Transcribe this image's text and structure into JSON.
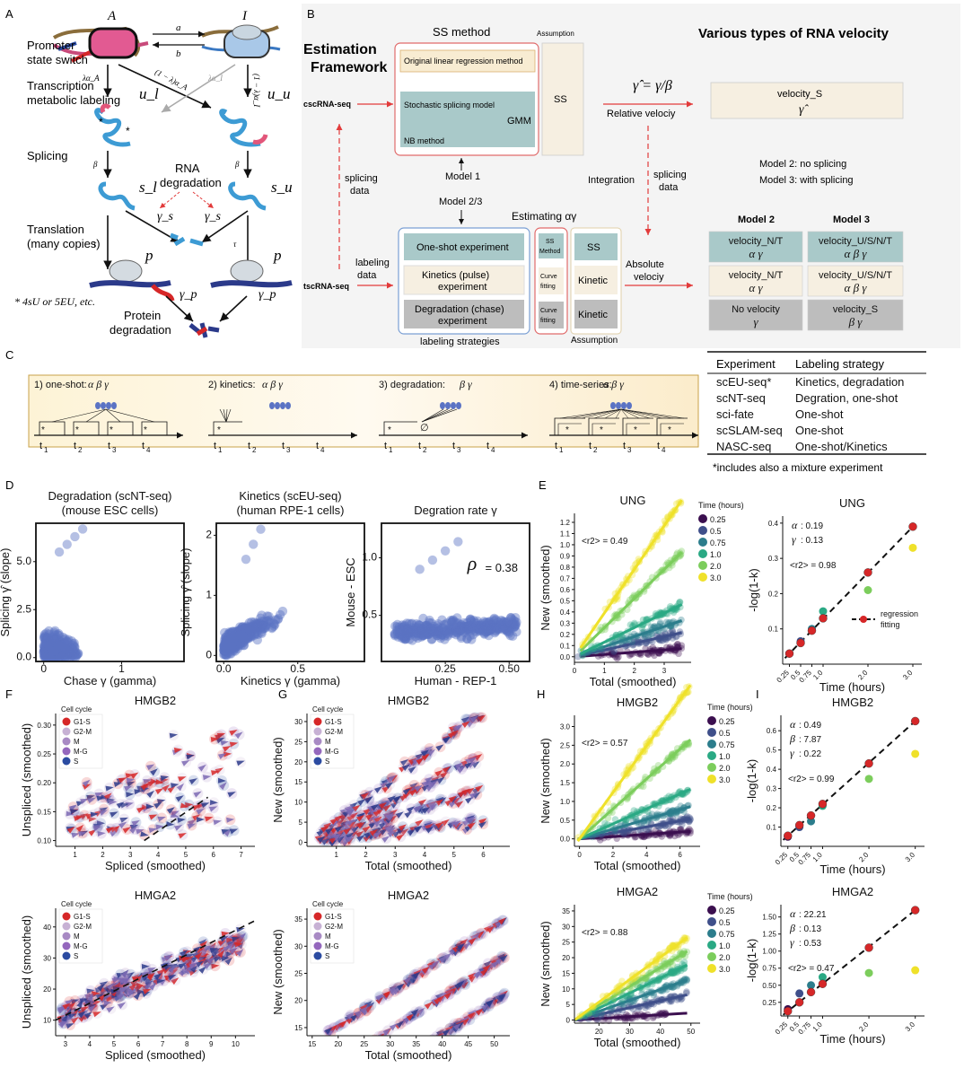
{
  "panel_letters": {
    "A": "A",
    "B": "B",
    "C": "C",
    "D": "D",
    "E": "E",
    "F": "F",
    "G": "G",
    "H": "H",
    "I": "I"
  },
  "panelA": {
    "state_A": "A",
    "state_I": "I",
    "rate_a": "a",
    "rate_b": "b",
    "row_promoter": [
      "Promoter",
      "state switch"
    ],
    "row_transcription": [
      "Transcription",
      "metabolic labeling"
    ],
    "row_splicing": "Splicing",
    "rna_degradation": [
      "RNA",
      "degradation"
    ],
    "row_translation": [
      "Translation",
      "(many copies)"
    ],
    "footnote": "* 4sU or 5EU, etc.",
    "protein_degradation": [
      "Protein",
      "degradation"
    ],
    "u_l": "u_l",
    "u_u": "u_u",
    "s_l": "s_l",
    "s_u": "s_u",
    "p": "p",
    "lambda_alphaA": "λα_A",
    "one_minus_lambda_alphaA": "(1 − λ)α_A",
    "lambda_alphaI": "λα_I",
    "one_minus_lambda_alphaI": "(1 − λ)α_I",
    "beta": "β",
    "tau": "τ",
    "gamma_s": "γ_s",
    "gamma_p": "γ_p"
  },
  "panelB": {
    "estimation_framework": [
      "Estimation",
      "Framework"
    ],
    "ss_method_title": "SS method",
    "assumption_top": "Assumption",
    "various_title": "Various types of RNA velocity",
    "original_lr": "Original linear regression method",
    "stochastic": "Stochastic splicing model",
    "gmm": "GMM",
    "nb": "NB method",
    "ss": "SS",
    "cscrna": "cscRNA-seq",
    "tscrna": "tscRNA-seq",
    "gamma_formula": "γ̂ = γ/β",
    "relative_velocity": "Relative velociy",
    "velocity_s": "velocity_S",
    "gamma_hat": "γ̂",
    "model1": "Model 1",
    "model23": "Model 2/3",
    "splicing_data_left": [
      "splicing",
      "data"
    ],
    "splicing_data_right": [
      "splicing",
      "data"
    ],
    "integration": "Integration",
    "model2_note": "Model 2: no splicing",
    "model3_note": "Model 3: with splicing",
    "estimating": "Estimating αγ",
    "labeling_data": [
      "labeling",
      "data"
    ],
    "one_shot": "One-shot experiment",
    "kinetics": [
      "Kinetics (pulse)",
      "experiment"
    ],
    "degradation": [
      "Degradation (chase)",
      "experiment"
    ],
    "ss_method_small": [
      "SS",
      "Method"
    ],
    "curve_fitting": [
      "Curve",
      "fitting"
    ],
    "kinetic": "Kinetic",
    "labeling_strategies": "labeling strategies",
    "assumption_bottom": "Assumption",
    "absolute_velocity": [
      "Absolute",
      "velociy"
    ],
    "model2_header": "Model 2",
    "model3_header": "Model 3",
    "table": [
      {
        "m2": "velocity_N/T",
        "m2p": "α γ",
        "m3": "velocity_U/S/N/T",
        "m3p": "α β γ"
      },
      {
        "m2": "velocity_N/T",
        "m2p": "α γ",
        "m3": "velocity_U/S/N/T",
        "m3p": "α β γ"
      },
      {
        "m2": "No velocity",
        "m2p": "γ",
        "m3": "velocity_S",
        "m3p": "β γ"
      }
    ]
  },
  "panelC": {
    "designs": [
      {
        "label": "1) one-shot:",
        "params": "α β γ"
      },
      {
        "label": "2) kinetics:",
        "params": "α β γ"
      },
      {
        "label": "3) degradation:",
        "params": "β γ"
      },
      {
        "label": "4) time-series:",
        "params": "α β γ"
      }
    ],
    "ticks": [
      "t1",
      "t2",
      "t3",
      "t4"
    ],
    "empty_set": "∅",
    "table_headers": [
      "Experiment",
      "Labeling strategy"
    ],
    "table_rows": [
      [
        "scEU-seq*",
        "Kinetics, degradation"
      ],
      [
        "scNT-seq",
        "Degration, one-shot"
      ],
      [
        "sci-fate",
        "One-shot"
      ],
      [
        "scSLAM-seq",
        "One-shot"
      ],
      [
        "NASC-seq",
        "One-shot/Kinetics"
      ]
    ],
    "footnote": "*includes also a mixture experiment"
  },
  "colors": {
    "points_blue": "#5b73c4",
    "teal_box": "#a9c9c9",
    "beige_box": "#f6efe1",
    "grey_box": "#bdbdbd",
    "yellow_box": "#f7eccb",
    "red_arrow": "#e23b3b",
    "time_colors": [
      "#3b0f4f",
      "#3f4f8a",
      "#2c7d8c",
      "#2aa984",
      "#7ccd5c",
      "#efe12a"
    ],
    "cell_cycle_colors": [
      "#d62728",
      "#c7b1d4",
      "#a88ac4",
      "#9467bd",
      "#2b4ba1"
    ]
  },
  "chart_data": [
    {
      "id": "D1",
      "type": "scatter",
      "title": [
        "Degradation (scNT-seq)",
        "(mouse ESC cells)"
      ],
      "xlabel": "Chase γ (gamma)",
      "ylabel": "Splicing γ̂ (slope)",
      "xticks": [
        "0",
        "1"
      ],
      "yticks": [
        "0.0",
        "2.5",
        "5.0"
      ],
      "xlim": [
        -0.1,
        1.8
      ],
      "ylim": [
        -0.2,
        7.0
      ]
    },
    {
      "id": "D2",
      "type": "scatter",
      "title": [
        "Kinetics (scEU-seq)",
        "(human RPE-1 cells)"
      ],
      "xlabel": "Kinetics γ (gamma)",
      "ylabel": "Splicing γ̂ (slope)",
      "xticks": [
        "0.0",
        "0.5"
      ],
      "yticks": [
        "0",
        "1",
        "2"
      ],
      "xlim": [
        -0.05,
        0.95
      ],
      "ylim": [
        -0.1,
        2.2
      ]
    },
    {
      "id": "D3",
      "type": "scatter",
      "title": "Degration rate γ",
      "xlabel": "Human - REP-1",
      "ylabel": "Mouse - ESC",
      "xticks": [
        "0.25",
        "0.50"
      ],
      "yticks": [
        "0.5",
        "1.0"
      ],
      "annotation": "ρ = 0.38",
      "xlim": [
        0.0,
        0.58
      ],
      "ylim": [
        0.1,
        1.3
      ]
    },
    {
      "id": "E1",
      "type": "scatter",
      "title": "UNG",
      "xlabel": "Total (smoothed)",
      "ylabel": "New (smoothed)",
      "xticks": [
        "0",
        "1",
        "2",
        "3"
      ],
      "yticks": [
        "0.0",
        "0.1",
        "0.2",
        "0.3",
        "0.4",
        "0.5",
        "0.6",
        "0.7",
        "0.8",
        "0.9",
        "1.0",
        "1.1",
        "1.2"
      ],
      "annotation": "<r2> = 0.49",
      "legend_title": "Time (hours)",
      "legend": [
        "0.25",
        "0.5",
        "0.75",
        "1.0",
        "2.0",
        "3.0"
      ],
      "xlim": [
        0,
        3.9
      ],
      "ylim": [
        -0.05,
        1.28
      ],
      "slopes": [
        0.02,
        0.06,
        0.09,
        0.13,
        0.26,
        0.39
      ]
    },
    {
      "id": "E2",
      "type": "scatter",
      "title": "UNG",
      "xlabel": "Time (hours)",
      "ylabel": "-log(1-k)",
      "x": [
        0.25,
        0.5,
        0.75,
        1.0,
        2.0,
        3.0
      ],
      "y_observed": [
        0.03,
        0.065,
        0.1,
        0.15,
        0.21,
        0.33
      ],
      "y_fitted": [
        0.03,
        0.06,
        0.095,
        0.13,
        0.26,
        0.39
      ],
      "xticks": [
        "0.25",
        "0.5",
        "0.75",
        "1.0",
        "2.0",
        "3.0"
      ],
      "yticks": [
        "0.1",
        "0.2",
        "0.3",
        "0.4"
      ],
      "xlim": [
        0.1,
        3.2
      ],
      "ylim": [
        0.0,
        0.42
      ],
      "params": [
        "α: 0.19",
        "γ: 0.13"
      ],
      "r2": "<r2> = 0.98",
      "legend": "regression fitting"
    },
    {
      "id": "F1",
      "type": "scatter",
      "title": "HMGB2",
      "xlabel": "Spliced (smoothed)",
      "ylabel": "Unspliced (smoothed)",
      "xticks": [
        "1",
        "2",
        "3",
        "4",
        "5",
        "6",
        "7"
      ],
      "yticks": [
        "0.10",
        "0.15",
        "0.20",
        "0.25",
        "0.30"
      ],
      "legend_title": "Cell cycle",
      "legend": [
        "G1-S",
        "G2-M",
        "M",
        "M-G",
        "S"
      ],
      "xlim": [
        0.3,
        7.5
      ],
      "ylim": [
        0.09,
        0.32
      ]
    },
    {
      "id": "G1",
      "type": "scatter",
      "title": "HMGB2",
      "xlabel": "Total (smoothed)",
      "ylabel": "New (smoothed)",
      "xticks": [
        "1",
        "2",
        "3",
        "4",
        "5",
        "6"
      ],
      "yticks": [
        "0",
        "5",
        "10",
        "15",
        "20",
        "25",
        "30"
      ],
      "legend_title": "Cell cycle",
      "legend": [
        "G1-S",
        "G2-M",
        "M",
        "M-G",
        "S"
      ],
      "xlim": [
        0,
        6.9
      ],
      "ylim": [
        -1,
        32
      ]
    },
    {
      "id": "H1",
      "type": "scatter",
      "title": "HMGB2",
      "xlabel": "Total (smoothed)",
      "ylabel": "New (smoothed)",
      "xticks": [
        "0",
        "2",
        "4",
        "6"
      ],
      "yticks": [
        "0.0",
        "0.5",
        "1.0",
        "1.5",
        "2.0",
        "2.5",
        "3.0"
      ],
      "annotation": "<r2> = 0.57",
      "legend_title": "Time (hours)",
      "legend": [
        "0.25",
        "0.5",
        "0.75",
        "1.0",
        "2.0",
        "3.0"
      ],
      "xlim": [
        -0.3,
        7.2
      ],
      "ylim": [
        -0.2,
        3.3
      ],
      "slopes": [
        0.03,
        0.08,
        0.13,
        0.2,
        0.4,
        0.62
      ]
    },
    {
      "id": "I1",
      "type": "scatter",
      "title": "HMGB2",
      "xlabel": "Time (hours)",
      "ylabel": "-log(1-k)",
      "x": [
        0.25,
        0.5,
        0.75,
        1.0,
        2.0,
        3.0
      ],
      "y_observed": [
        0.05,
        0.1,
        0.13,
        0.21,
        0.35,
        0.48
      ],
      "y_fitted": [
        0.055,
        0.11,
        0.16,
        0.22,
        0.43,
        0.65
      ],
      "xticks": [
        "0.25",
        "0.5",
        "0.75",
        "1.0",
        "2.0",
        "3.0"
      ],
      "yticks": [
        "0.1",
        "0.2",
        "0.3",
        "0.4",
        "0.5",
        "0.6"
      ],
      "xlim": [
        0.1,
        3.2
      ],
      "ylim": [
        0.0,
        0.68
      ],
      "params": [
        "α: 0.49",
        "β: 7.87",
        "γ: 0.22"
      ],
      "r2": "<r2> = 0.99"
    },
    {
      "id": "F2",
      "type": "scatter",
      "title": "HMGA2",
      "xlabel": "Spliced (smoothed)",
      "ylabel": "Unspliced (smoothed)",
      "xticks": [
        "3",
        "4",
        "5",
        "6",
        "7",
        "8",
        "9",
        "10"
      ],
      "yticks": [
        "10",
        "20",
        "30",
        "40"
      ],
      "legend_title": "Cell cycle",
      "legend": [
        "G1-S",
        "G2-M",
        "M",
        "M-G",
        "S"
      ],
      "xlim": [
        2.6,
        10.8
      ],
      "ylim": [
        5,
        46
      ]
    },
    {
      "id": "G2",
      "type": "scatter",
      "title": "HMGA2",
      "xlabel": "Total (smoothed)",
      "ylabel": "New (smoothed)",
      "xticks": [
        "15",
        "20",
        "25",
        "30",
        "35",
        "40",
        "45",
        "50"
      ],
      "yticks": [
        "15",
        "20",
        "25",
        "30",
        "35"
      ],
      "legend_title": "Cell cycle",
      "legend": [
        "G1-S",
        "G2-M",
        "M",
        "M-G",
        "S"
      ],
      "xlim": [
        14,
        53
      ],
      "ylim": [
        13.5,
        37
      ]
    },
    {
      "id": "H2",
      "type": "scatter",
      "title": "HMGA2",
      "xlabel": "Total (smoothed)",
      "ylabel": "New (smoothed)",
      "xticks": [
        "20",
        "30",
        "40",
        "50"
      ],
      "yticks": [
        "0",
        "5",
        "10",
        "15",
        "20",
        "25",
        "30",
        "35"
      ],
      "annotation": "<r2> = 0.88",
      "legend_title": "Time (hours)",
      "legend": [
        "0.25",
        "0.5",
        "0.75",
        "1.0",
        "2.0",
        "3.0"
      ],
      "xlim": [
        12,
        53
      ],
      "ylim": [
        -1,
        37
      ],
      "slopes": [
        0.06,
        0.22,
        0.35,
        0.48,
        0.6,
        0.72
      ]
    },
    {
      "id": "I2",
      "type": "scatter",
      "title": "HMGA2",
      "xlabel": "Time (hours)",
      "ylabel": "-log(1-k)",
      "x": [
        0.25,
        0.5,
        0.75,
        1.0,
        2.0,
        3.0
      ],
      "y_observed": [
        0.15,
        0.38,
        0.5,
        0.62,
        0.68,
        0.72
      ],
      "y_fitted": [
        0.12,
        0.25,
        0.4,
        0.52,
        1.05,
        1.6
      ],
      "xticks": [
        "0.25",
        "0.5",
        "0.75",
        "1.0",
        "2.0",
        "3.0"
      ],
      "yticks": [
        "0.25",
        "0.50",
        "0.75",
        "1.00",
        "1.25",
        "1.50"
      ],
      "xlim": [
        0.1,
        3.2
      ],
      "ylim": [
        0.05,
        1.68
      ],
      "params": [
        "α: 22.21",
        "β: 0.13",
        "γ: 0.53"
      ],
      "r2": "<r2> = 0.47"
    }
  ]
}
